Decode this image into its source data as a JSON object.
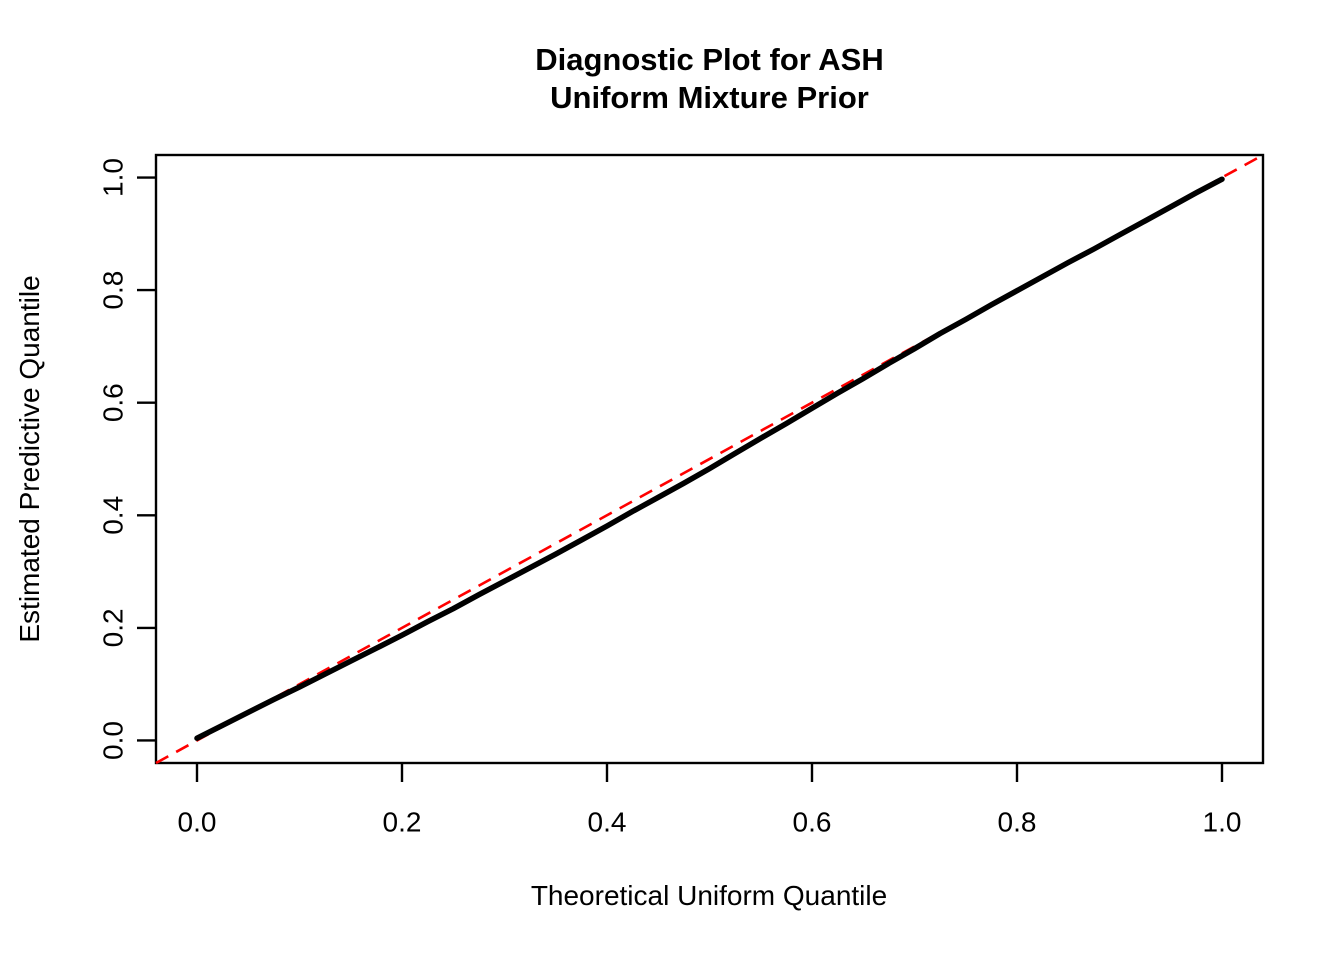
{
  "chart_data": {
    "type": "scatter",
    "title": "Diagnostic Plot for ASH\nUniform Mixture Prior",
    "title_lines": [
      "Diagnostic Plot for ASH",
      "Uniform Mixture Prior"
    ],
    "xlabel": "Theoretical Uniform Quantile",
    "ylabel": "Estimated Predictive Quantile",
    "xlim": [
      -0.04,
      1.04
    ],
    "ylim": [
      -0.04,
      1.04
    ],
    "x_tick_values": [
      0.0,
      0.2,
      0.4,
      0.6,
      0.8,
      1.0
    ],
    "x_tick_labels": [
      "0.0",
      "0.2",
      "0.4",
      "0.6",
      "0.8",
      "1.0"
    ],
    "y_tick_values": [
      0.0,
      0.2,
      0.4,
      0.6,
      0.8,
      1.0
    ],
    "y_tick_labels": [
      "0.0",
      "0.2",
      "0.4",
      "0.6",
      "0.8",
      "1.0"
    ],
    "grid": false,
    "legend": "none",
    "colors": {
      "points": "#000000",
      "reference_line": "#FF0000",
      "axis": "#000000",
      "background": "#FFFFFF"
    },
    "series": [
      {
        "name": "estimated-predictive-quantiles",
        "style": "dense-points",
        "color": "#000000",
        "points": [
          [
            0.0,
            0.004
          ],
          [
            0.025,
            0.027
          ],
          [
            0.05,
            0.05
          ],
          [
            0.075,
            0.073
          ],
          [
            0.1,
            0.095
          ],
          [
            0.125,
            0.118
          ],
          [
            0.15,
            0.141
          ],
          [
            0.175,
            0.164
          ],
          [
            0.2,
            0.187
          ],
          [
            0.225,
            0.211
          ],
          [
            0.25,
            0.234
          ],
          [
            0.275,
            0.259
          ],
          [
            0.3,
            0.283
          ],
          [
            0.325,
            0.307
          ],
          [
            0.35,
            0.331
          ],
          [
            0.375,
            0.356
          ],
          [
            0.4,
            0.381
          ],
          [
            0.425,
            0.407
          ],
          [
            0.45,
            0.432
          ],
          [
            0.475,
            0.457
          ],
          [
            0.5,
            0.483
          ],
          [
            0.525,
            0.51
          ],
          [
            0.55,
            0.537
          ],
          [
            0.575,
            0.563
          ],
          [
            0.6,
            0.59
          ],
          [
            0.625,
            0.617
          ],
          [
            0.65,
            0.643
          ],
          [
            0.675,
            0.67
          ],
          [
            0.7,
            0.696
          ],
          [
            0.725,
            0.723
          ],
          [
            0.75,
            0.748
          ],
          [
            0.775,
            0.774
          ],
          [
            0.8,
            0.799
          ],
          [
            0.825,
            0.824
          ],
          [
            0.85,
            0.849
          ],
          [
            0.875,
            0.873
          ],
          [
            0.9,
            0.898
          ],
          [
            0.925,
            0.923
          ],
          [
            0.95,
            0.948
          ],
          [
            0.975,
            0.973
          ],
          [
            1.0,
            0.997
          ]
        ]
      },
      {
        "name": "reference-line-y-equals-x",
        "style": "dashed-line",
        "color": "#FF0000",
        "from": [
          -0.04,
          -0.04
        ],
        "to": [
          1.04,
          1.04
        ]
      }
    ]
  }
}
